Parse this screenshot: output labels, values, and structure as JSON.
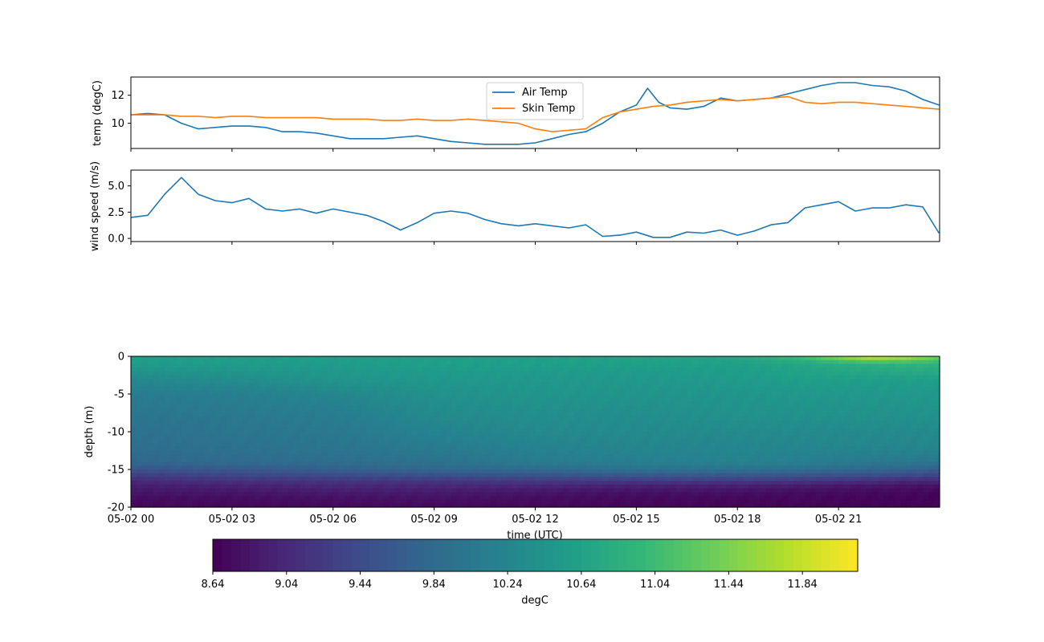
{
  "chart_data": [
    {
      "type": "line",
      "ylabel": "temp (degC)",
      "ylim": [
        8.2,
        13.3
      ],
      "xlim": [
        "05-02 00",
        "05-03 00"
      ],
      "yticks": [
        "10",
        "12"
      ],
      "legend_position": "top-center",
      "series": [
        {
          "name": "Air Temp",
          "color": "#1f77b4",
          "x": [
            "05-02 00:00",
            "05-02 00:30",
            "05-02 01:00",
            "05-02 01:30",
            "05-02 02:00",
            "05-02 02:30",
            "05-02 03:00",
            "05-02 03:30",
            "05-02 04:00",
            "05-02 04:30",
            "05-02 05:00",
            "05-02 05:30",
            "05-02 06:00",
            "05-02 06:30",
            "05-02 07:00",
            "05-02 07:30",
            "05-02 08:00",
            "05-02 08:30",
            "05-02 09:00",
            "05-02 09:30",
            "05-02 10:00",
            "05-02 10:30",
            "05-02 11:00",
            "05-02 11:30",
            "05-02 12:00",
            "05-02 12:30",
            "05-02 13:00",
            "05-02 13:30",
            "05-02 14:00",
            "05-02 14:30",
            "05-02 15:00",
            "05-02 15:20",
            "05-02 15:40",
            "05-02 16:00",
            "05-02 16:30",
            "05-02 17:00",
            "05-02 17:30",
            "05-02 18:00",
            "05-02 18:30",
            "05-02 19:00",
            "05-02 19:30",
            "05-02 20:00",
            "05-02 20:30",
            "05-02 21:00",
            "05-02 21:30",
            "05-02 22:00",
            "05-02 22:30",
            "05-02 23:00",
            "05-02 23:30",
            "05-02 23:59"
          ],
          "y": [
            10.6,
            10.7,
            10.6,
            10.0,
            9.6,
            9.7,
            9.8,
            9.8,
            9.7,
            9.4,
            9.4,
            9.3,
            9.1,
            8.9,
            8.9,
            8.9,
            9.0,
            9.1,
            8.9,
            8.7,
            8.6,
            8.5,
            8.5,
            8.5,
            8.6,
            8.9,
            9.2,
            9.4,
            10.0,
            10.8,
            11.3,
            12.5,
            11.5,
            11.1,
            11.0,
            11.2,
            11.8,
            11.6,
            11.7,
            11.8,
            12.1,
            12.4,
            12.7,
            12.9,
            12.9,
            12.7,
            12.6,
            12.3,
            11.7,
            11.3
          ]
        },
        {
          "name": "Skin Temp",
          "color": "#ff7f0e",
          "x": [
            "05-02 00:00",
            "05-02 00:30",
            "05-02 01:00",
            "05-02 01:30",
            "05-02 02:00",
            "05-02 02:30",
            "05-02 03:00",
            "05-02 03:30",
            "05-02 04:00",
            "05-02 04:30",
            "05-02 05:00",
            "05-02 05:30",
            "05-02 06:00",
            "05-02 06:30",
            "05-02 07:00",
            "05-02 07:30",
            "05-02 08:00",
            "05-02 08:30",
            "05-02 09:00",
            "05-02 09:30",
            "05-02 10:00",
            "05-02 10:30",
            "05-02 11:00",
            "05-02 11:30",
            "05-02 12:00",
            "05-02 12:30",
            "05-02 13:00",
            "05-02 13:30",
            "05-02 14:00",
            "05-02 14:30",
            "05-02 15:00",
            "05-02 15:30",
            "05-02 16:00",
            "05-02 16:30",
            "05-02 17:00",
            "05-02 17:30",
            "05-02 18:00",
            "05-02 18:30",
            "05-02 19:00",
            "05-02 19:30",
            "05-02 20:00",
            "05-02 20:30",
            "05-02 21:00",
            "05-02 21:30",
            "05-02 22:00",
            "05-02 22:30",
            "05-02 23:00",
            "05-02 23:30",
            "05-02 23:59"
          ],
          "y": [
            10.6,
            10.6,
            10.6,
            10.5,
            10.5,
            10.4,
            10.5,
            10.5,
            10.4,
            10.4,
            10.4,
            10.4,
            10.3,
            10.3,
            10.3,
            10.2,
            10.2,
            10.3,
            10.2,
            10.2,
            10.3,
            10.2,
            10.1,
            10.0,
            9.6,
            9.4,
            9.5,
            9.6,
            10.4,
            10.8,
            11.0,
            11.2,
            11.3,
            11.5,
            11.6,
            11.7,
            11.6,
            11.7,
            11.8,
            11.9,
            11.5,
            11.4,
            11.5,
            11.5,
            11.4,
            11.3,
            11.2,
            11.1,
            11.0
          ]
        }
      ]
    },
    {
      "type": "line",
      "ylabel": "wind speed (m/s)",
      "ylim": [
        -0.3,
        6.5
      ],
      "xlim": [
        "05-02 00",
        "05-03 00"
      ],
      "yticks": [
        "0.0",
        "2.5",
        "5.0"
      ],
      "series": [
        {
          "color": "#1f77b4",
          "x": [
            "05-02 00:00",
            "05-02 00:30",
            "05-02 01:00",
            "05-02 01:30",
            "05-02 02:00",
            "05-02 02:30",
            "05-02 03:00",
            "05-02 03:30",
            "05-02 04:00",
            "05-02 04:30",
            "05-02 05:00",
            "05-02 05:30",
            "05-02 06:00",
            "05-02 06:30",
            "05-02 07:00",
            "05-02 07:30",
            "05-02 08:00",
            "05-02 08:30",
            "05-02 09:00",
            "05-02 09:30",
            "05-02 10:00",
            "05-02 10:30",
            "05-02 11:00",
            "05-02 11:30",
            "05-02 12:00",
            "05-02 12:30",
            "05-02 13:00",
            "05-02 13:30",
            "05-02 14:00",
            "05-02 14:30",
            "05-02 15:00",
            "05-02 15:30",
            "05-02 16:00",
            "05-02 16:30",
            "05-02 17:00",
            "05-02 17:30",
            "05-02 18:00",
            "05-02 18:30",
            "05-02 19:00",
            "05-02 19:30",
            "05-02 20:00",
            "05-02 20:30",
            "05-02 21:00",
            "05-02 21:30",
            "05-02 22:00",
            "05-02 22:30",
            "05-02 23:00",
            "05-02 23:30",
            "05-02 23:59"
          ],
          "y": [
            2.0,
            2.2,
            4.2,
            5.8,
            4.2,
            3.6,
            3.4,
            3.8,
            2.8,
            2.6,
            2.8,
            2.4,
            2.8,
            2.5,
            2.2,
            1.6,
            0.8,
            1.5,
            2.4,
            2.6,
            2.4,
            1.8,
            1.4,
            1.2,
            1.4,
            1.2,
            1.0,
            1.3,
            0.2,
            0.3,
            0.6,
            0.1,
            0.1,
            0.6,
            0.5,
            0.8,
            0.3,
            0.7,
            1.3,
            1.5,
            2.9,
            3.2,
            3.5,
            2.6,
            2.9,
            2.9,
            3.2,
            3.0,
            0.5
          ]
        }
      ]
    },
    {
      "type": "heatmap",
      "xlabel": "time (UTC)",
      "ylabel": "depth (m)",
      "ylim": [
        -20,
        0
      ],
      "yticks": [
        "0",
        "-5",
        "-10",
        "-15",
        "-20"
      ],
      "xticks": [
        "05-02 00",
        "05-02 03",
        "05-02 06",
        "05-02 09",
        "05-02 12",
        "05-02 15",
        "05-02 18",
        "05-02 21"
      ],
      "colormap": "viridis",
      "times_h": [
        0,
        3,
        6,
        9,
        12,
        15,
        18,
        20,
        21,
        22,
        23,
        24
      ],
      "depths": [
        0,
        -1,
        -3,
        -5,
        -8,
        -10,
        -12,
        -14,
        -15,
        -16,
        -17,
        -18,
        -19,
        -20
      ],
      "values": [
        [
          10.6,
          10.6,
          10.6,
          10.6,
          10.6,
          10.65,
          10.7,
          11.1,
          11.6,
          12.0,
          11.8,
          11.4
        ],
        [
          10.55,
          10.55,
          10.55,
          10.6,
          10.6,
          10.6,
          10.6,
          10.7,
          10.8,
          10.85,
          10.9,
          10.9
        ],
        [
          10.3,
          10.35,
          10.45,
          10.5,
          10.5,
          10.5,
          10.55,
          10.6,
          10.6,
          10.6,
          10.6,
          10.6
        ],
        [
          10.1,
          10.15,
          10.25,
          10.4,
          10.45,
          10.45,
          10.45,
          10.5,
          10.5,
          10.5,
          10.5,
          10.5
        ],
        [
          10.0,
          10.05,
          10.1,
          10.3,
          10.35,
          10.35,
          10.4,
          10.4,
          10.4,
          10.4,
          10.4,
          10.4
        ],
        [
          9.95,
          10.0,
          10.05,
          10.2,
          10.3,
          10.3,
          10.3,
          10.3,
          10.3,
          10.3,
          10.3,
          10.3
        ],
        [
          9.9,
          9.95,
          10.0,
          10.1,
          10.2,
          10.25,
          10.25,
          10.25,
          10.25,
          10.25,
          10.25,
          10.25
        ],
        [
          9.8,
          9.85,
          9.9,
          9.95,
          10.1,
          10.15,
          10.2,
          10.15,
          10.1,
          10.05,
          10.05,
          10.0
        ],
        [
          9.55,
          9.6,
          9.7,
          9.8,
          9.85,
          9.95,
          9.95,
          9.9,
          9.85,
          9.8,
          9.75,
          9.7
        ],
        [
          9.2,
          9.3,
          9.35,
          9.4,
          9.45,
          9.5,
          9.5,
          9.45,
          9.4,
          9.35,
          9.3,
          9.25
        ],
        [
          8.95,
          9.0,
          9.05,
          9.05,
          9.05,
          9.0,
          9.0,
          8.95,
          8.9,
          8.9,
          8.85,
          8.85
        ],
        [
          8.85,
          8.85,
          8.9,
          8.9,
          8.85,
          8.8,
          8.8,
          8.75,
          8.75,
          8.72,
          8.72,
          8.7
        ],
        [
          8.75,
          8.75,
          8.78,
          8.8,
          8.75,
          8.72,
          8.7,
          8.7,
          8.68,
          8.68,
          8.67,
          8.67
        ],
        [
          8.7,
          8.7,
          8.72,
          8.72,
          8.7,
          8.68,
          8.68,
          8.66,
          8.66,
          8.65,
          8.65,
          8.65
        ]
      ]
    },
    {
      "type": "colorbar",
      "label": "degC",
      "vmin": 8.64,
      "vmax": 12.14,
      "ticks": [
        "8.64",
        "9.04",
        "9.44",
        "9.84",
        "10.24",
        "10.64",
        "11.04",
        "11.44",
        "11.84"
      ]
    }
  ]
}
